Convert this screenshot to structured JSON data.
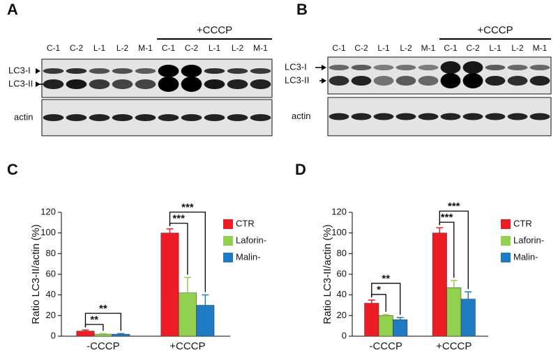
{
  "blots": [
    {
      "panel_label": "A",
      "treatment": "+CCCP",
      "lanes": [
        "C-1",
        "C-2",
        "L-1",
        "L-2",
        "M-1",
        "C-1",
        "C-2",
        "L-1",
        "L-2",
        "M-1"
      ],
      "bands": [
        "LC3-I",
        "LC3-II"
      ],
      "loading_control": "actin"
    },
    {
      "panel_label": "B",
      "treatment": "+CCCP",
      "lanes": [
        "C-1",
        "C-2",
        "L-1",
        "L-2",
        "M-1",
        "C-1",
        "C-2",
        "L-1",
        "L-2",
        "M-1"
      ],
      "bands": [
        "LC3-I",
        "LC3-II"
      ],
      "loading_control": "actin"
    }
  ],
  "chart_data": [
    {
      "type": "bar",
      "panel_label": "C",
      "y_label": "Ratio LC3-II/actin (%)",
      "categories": [
        "-CCCP",
        "+CCCP"
      ],
      "series": [
        {
          "name": "CTR",
          "color": "#ee1c24",
          "values": [
            5,
            100
          ],
          "errors": [
            1,
            4
          ]
        },
        {
          "name": "Laforin-",
          "color": "#92d050",
          "values": [
            2,
            42
          ],
          "errors": [
            0.5,
            15
          ]
        },
        {
          "name": "Malin-",
          "color": "#1f7ac4",
          "values": [
            2,
            30
          ],
          "errors": [
            0.5,
            10
          ]
        }
      ],
      "ylim": [
        0,
        120
      ],
      "yticks": [
        0,
        20,
        40,
        60,
        80,
        100,
        120
      ],
      "annotations": [
        {
          "text": "**",
          "category": "-CCCP",
          "series": [
            "CTR",
            "Laforin-"
          ]
        },
        {
          "text": "**",
          "category": "-CCCP",
          "series": [
            "CTR",
            "Malin-"
          ]
        },
        {
          "text": "***",
          "category": "+CCCP",
          "series": [
            "CTR",
            "Laforin-"
          ]
        },
        {
          "text": "***",
          "category": "+CCCP",
          "series": [
            "CTR",
            "Malin-"
          ]
        }
      ]
    },
    {
      "type": "bar",
      "panel_label": "D",
      "y_label": "Ratio LC3-II/actin (%)",
      "categories": [
        "-CCCP",
        "+CCCP"
      ],
      "series": [
        {
          "name": "CTR",
          "color": "#ee1c24",
          "values": [
            32,
            100
          ],
          "errors": [
            3,
            5
          ]
        },
        {
          "name": "Laforin-",
          "color": "#92d050",
          "values": [
            20,
            47
          ],
          "errors": [
            1,
            7
          ]
        },
        {
          "name": "Malin-",
          "color": "#1f7ac4",
          "values": [
            16,
            36
          ],
          "errors": [
            2,
            7
          ]
        }
      ],
      "ylim": [
        0,
        120
      ],
      "yticks": [
        0,
        20,
        40,
        60,
        80,
        100,
        120
      ],
      "annotations": [
        {
          "text": "*",
          "category": "-CCCP",
          "series": [
            "CTR",
            "Laforin-"
          ]
        },
        {
          "text": "**",
          "category": "-CCCP",
          "series": [
            "CTR",
            "Malin-"
          ]
        },
        {
          "text": "***",
          "category": "+CCCP",
          "series": [
            "CTR",
            "Laforin-"
          ]
        },
        {
          "text": "***",
          "category": "+CCCP",
          "series": [
            "CTR",
            "Malin-"
          ]
        }
      ]
    }
  ]
}
